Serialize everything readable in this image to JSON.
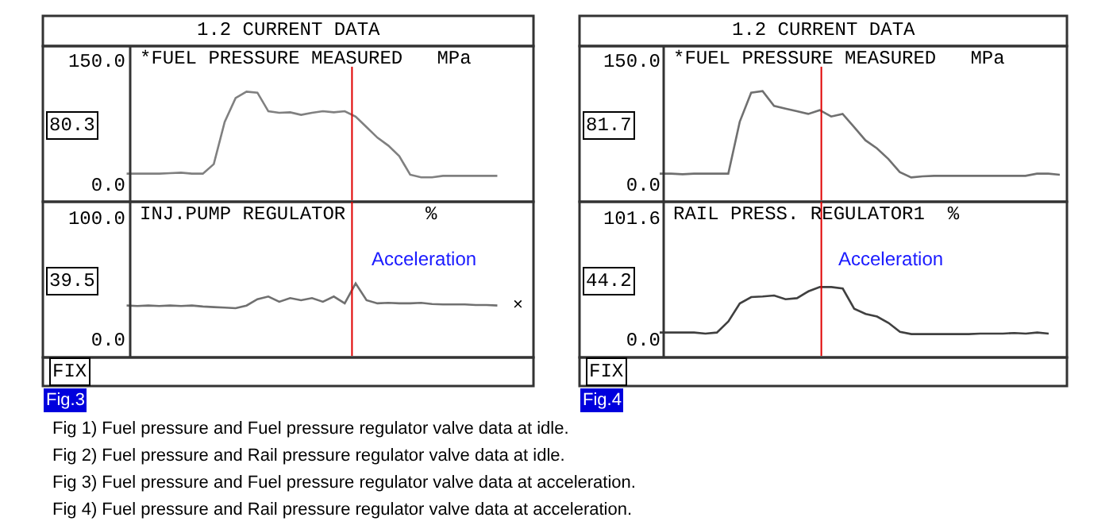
{
  "chart_data": [
    {
      "type": "line",
      "title": "1.2 CURRENT DATA",
      "subtitle": "*FUEL PRESSURE MEASURED   MPa",
      "categories": [
        null,
        null,
        null,
        null,
        null,
        null,
        null,
        null,
        null,
        null,
        null,
        null,
        null,
        null,
        null,
        null,
        null,
        null,
        null,
        null,
        null,
        null,
        null,
        null,
        null,
        null,
        null,
        null,
        null,
        null,
        null,
        null,
        null,
        null,
        null
      ],
      "series": [
        {
          "color": "#808080",
          "values": [
            12.8,
            12.8,
            12.8,
            12.8,
            13.4,
            14.0,
            12.8,
            12.8,
            24.3,
            75.3,
            104.1,
            111.7,
            110.5,
            88.1,
            86.2,
            86.8,
            83.7,
            86.2,
            88.1,
            86.8,
            88.1,
            81.7,
            69.0,
            56.2,
            46.6,
            33.9,
            11.5,
            8.3,
            8.3,
            10.2,
            10.2,
            10.2,
            10.2,
            10.2,
            10.2
          ]
        }
      ],
      "ylim": [
        -21.1,
        166.7
      ],
      "yticks": [
        {
          "value": 0,
          "label": "0.0"
        },
        {
          "value": 150,
          "label": "150.0"
        }
      ],
      "annotations": [
        "80.3"
      ]
    },
    {
      "type": "line",
      "subtitle": "INJ.PUMP REGULATOR       %",
      "categories": [
        null,
        null,
        null,
        null,
        null,
        null,
        null,
        null,
        null,
        null,
        null,
        null,
        null,
        null,
        null,
        null,
        null,
        null,
        null,
        null,
        null,
        null,
        null,
        null,
        null,
        null,
        null,
        null,
        null,
        null,
        null,
        null,
        null,
        null,
        null
      ],
      "series": [
        {
          "color": "#707070",
          "values": [
            27.4,
            27.0,
            27.4,
            27.0,
            27.4,
            27.0,
            27.4,
            26.6,
            26.1,
            25.7,
            25.2,
            27.4,
            32.6,
            34.8,
            30.5,
            33.5,
            31.8,
            33.5,
            30.5,
            34.8,
            29.2,
            45.6,
            31.8,
            29.2,
            29.6,
            29.2,
            29.2,
            29.6,
            28.7,
            28.3,
            28.3,
            28.3,
            27.8,
            27.8,
            27.4
          ]
        }
      ],
      "ylim": [
        -15.3,
        112.8
      ],
      "yticks": [
        {
          "value": 0,
          "label": "0.0"
        },
        {
          "value": 100,
          "label": "100.0"
        }
      ],
      "annotations": [
        "39.5",
        "Acceleration",
        "×",
        "FIX",
        "Fig.3",
        "Fig 1) Fuel pressure and Fuel pressure regulator valve data at idle.",
        "Fig 2) Fuel pressure and Rail pressure regulator valve data at idle.",
        "Fig 3) Fuel pressure and Fuel pressure regulator valve data at acceleration.",
        "Fig 4) Fuel pressure and Rail pressure regulator valve data at acceleration."
      ]
    },
    {
      "type": "line",
      "title": "1.2 CURRENT DATA",
      "subtitle": "*FUEL PRESSURE MEASURED   MPa",
      "categories": [
        null,
        null,
        null,
        null,
        null,
        null,
        null,
        null,
        null,
        null,
        null,
        null,
        null,
        null,
        null,
        null,
        null,
        null,
        null,
        null,
        null,
        null,
        null,
        null,
        null,
        null,
        null,
        null,
        null,
        null,
        null,
        null,
        null,
        null,
        null,
        null
      ],
      "series": [
        {
          "color": "#707070",
          "values": [
            12.8,
            12.8,
            12.1,
            12.8,
            12.8,
            12.8,
            12.8,
            75.3,
            110.5,
            112.4,
            94.5,
            91.3,
            88.1,
            84.9,
            89.4,
            81.7,
            84.9,
            69.0,
            53.0,
            43.4,
            30.6,
            14.7,
            8.3,
            9.5,
            10.2,
            10.2,
            10.2,
            10.2,
            10.2,
            10.2,
            10.2,
            10.2,
            10.2,
            12.8,
            12.8,
            11.5
          ]
        }
      ],
      "ylim": [
        -21.1,
        166.7
      ],
      "yticks": [
        {
          "value": 0,
          "label": "0.0"
        },
        {
          "value": 150,
          "label": "150.0"
        }
      ],
      "annotations": [
        "81.7"
      ]
    },
    {
      "type": "line",
      "subtitle": "RAIL PRESS. REGULATOR1  %",
      "categories": [
        null,
        null,
        null,
        null,
        null,
        null,
        null,
        null,
        null,
        null,
        null,
        null,
        null,
        null,
        null,
        null,
        null,
        null,
        null,
        null,
        null,
        null,
        null,
        null,
        null,
        null,
        null,
        null,
        null,
        null,
        null,
        null,
        null,
        null,
        null
      ],
      "series": [
        {
          "color": "#404040",
          "values": [
            5.3,
            5.3,
            5.3,
            5.3,
            4.4,
            5.3,
            14.5,
            29.6,
            34.9,
            35.4,
            36.2,
            33.1,
            34.0,
            39.7,
            43.3,
            43.3,
            42.0,
            25.2,
            20.8,
            18.6,
            13.3,
            5.8,
            4.0,
            4.0,
            4.0,
            4.0,
            4.0,
            4.0,
            4.4,
            4.4,
            4.4,
            4.9,
            4.4,
            5.3,
            4.4
          ]
        }
      ],
      "ylim": [
        -15.5,
        114.5
      ],
      "yticks": [
        {
          "value": 0,
          "label": "0.0"
        },
        {
          "value": 101.6,
          "label": "101.6"
        }
      ],
      "annotations": [
        "44.2",
        "Acceleration",
        "FIX",
        "Fig.4"
      ]
    }
  ]
}
